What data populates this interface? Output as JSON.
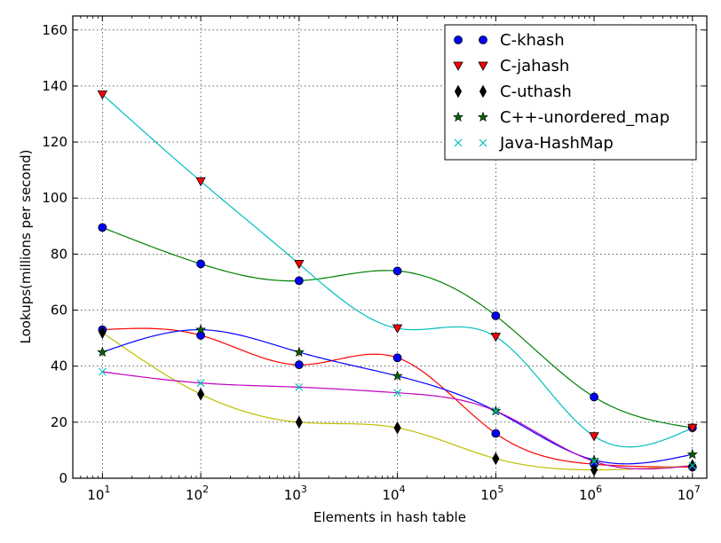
{
  "chart_data": {
    "type": "line",
    "xlabel": "Elements in hash table",
    "ylabel": "Lookups(millions per second)",
    "x_scale": "log",
    "xlim": [
      5,
      14000000
    ],
    "ylim": [
      0,
      165
    ],
    "y_ticks": [
      0,
      20,
      40,
      60,
      80,
      100,
      120,
      140,
      160
    ],
    "x_ticks": [
      {
        "value": 10,
        "base": "10",
        "exp": "1"
      },
      {
        "value": 100,
        "base": "10",
        "exp": "2"
      },
      {
        "value": 1000,
        "base": "10",
        "exp": "3"
      },
      {
        "value": 10000,
        "base": "10",
        "exp": "4"
      },
      {
        "value": 100000,
        "base": "10",
        "exp": "5"
      },
      {
        "value": 1000000,
        "base": "10",
        "exp": "6"
      },
      {
        "value": 10000000,
        "base": "10",
        "exp": "7"
      }
    ],
    "grid": true,
    "legend_position": "top-right",
    "x": [
      10,
      100,
      1000,
      10000,
      100000,
      1000000,
      10000000
    ],
    "series": [
      {
        "name": "C-khash",
        "marker": "circle",
        "marker_color": "#0000ff",
        "points": [
          {
            "values": [
              89.5,
              76.5,
              70.5,
              74,
              58,
              29,
              18
            ],
            "curve_color": "#008000"
          },
          {
            "values": [
              53,
              51,
              40.5,
              43,
              16,
              5,
              4
            ],
            "curve_color": "#ff0000"
          }
        ]
      },
      {
        "name": "C-jahash",
        "marker": "triangle-down",
        "marker_color": "#ff0000",
        "points": [
          {
            "values": [
              137,
              106,
              76.5,
              53.5,
              50.5,
              15,
              18
            ],
            "curve_color": "#00bfbf"
          }
        ]
      },
      {
        "name": "C-uthash",
        "marker": "diamond",
        "marker_color": "#000000",
        "points": [
          {
            "values": [
              52,
              30,
              20,
              18,
              7,
              3,
              4.5
            ],
            "curve_color": "#bfbf00"
          }
        ]
      },
      {
        "name": "C++-unordered_map",
        "marker": "star",
        "marker_color": "#006400",
        "points": [
          {
            "values": [
              45,
              53,
              45,
              36.5,
              24,
              6.5,
              8.5
            ],
            "curve_color": "#0000ff"
          }
        ]
      },
      {
        "name": "Java-HashMap",
        "marker": "x",
        "marker_color": "#00bfbf",
        "points": [
          {
            "values": [
              38,
              34,
              32.5,
              30.5,
              24,
              6,
              4.5
            ],
            "curve_color": "#bf00bf"
          }
        ]
      }
    ]
  }
}
